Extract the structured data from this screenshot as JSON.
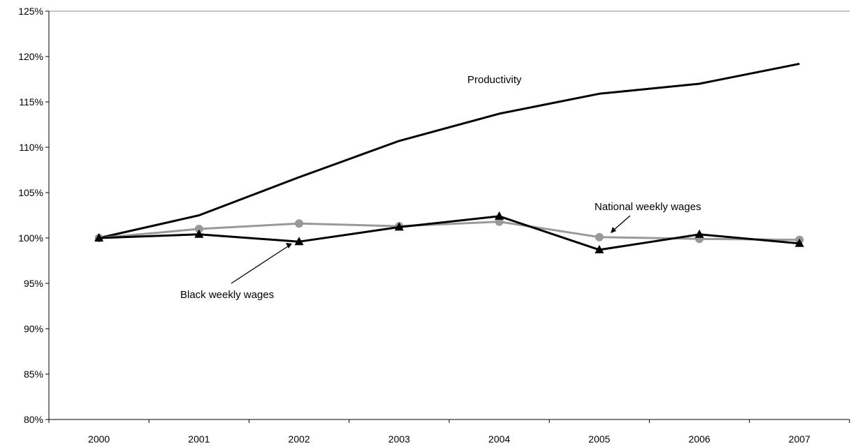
{
  "chart_data": {
    "type": "line",
    "x": [
      "2000",
      "2001",
      "2002",
      "2003",
      "2004",
      "2005",
      "2006",
      "2007"
    ],
    "ylim": [
      80,
      125
    ],
    "y_ticks": [
      "80%",
      "85%",
      "90%",
      "95%",
      "100%",
      "105%",
      "110%",
      "115%",
      "120%",
      "125%"
    ],
    "grid": false,
    "legend": "none",
    "series": [
      {
        "name": "Productivity",
        "marker": "none",
        "color": "#000000",
        "values": [
          100.0,
          102.5,
          106.7,
          110.7,
          113.7,
          115.9,
          117.0,
          119.2
        ]
      },
      {
        "name": "National weekly wages",
        "marker": "circle",
        "color": "#999999",
        "values": [
          100.0,
          101.0,
          101.6,
          101.3,
          101.8,
          100.1,
          99.9,
          99.8
        ]
      },
      {
        "name": "Black weekly wages",
        "marker": "triangle",
        "color": "#000000",
        "values": [
          100.0,
          100.4,
          99.6,
          101.2,
          102.4,
          98.7,
          100.4,
          99.4
        ]
      }
    ],
    "annotations": {
      "productivity": "Productivity",
      "national": "National weekly wages",
      "black": "Black weekly wages"
    }
  }
}
